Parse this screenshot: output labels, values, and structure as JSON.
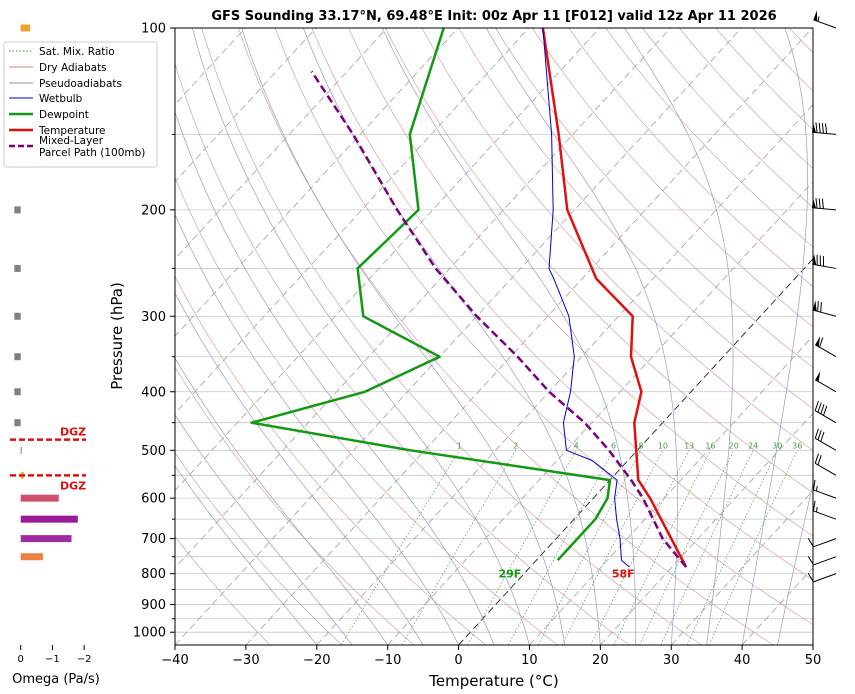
{
  "chart_data": {
    "type": "line",
    "title": "GFS Sounding 33.17°N, 69.48°E Init: 00z Apr 11 [F012] valid 12z Apr 11 2026",
    "xlabel": "Temperature (°C)",
    "ylabel": "Pressure (hPa)",
    "xlim": [
      -40,
      50
    ],
    "ylim": [
      1050,
      100
    ],
    "y_scale": "log",
    "skew": true,
    "grid": true,
    "legend_position": "top-left",
    "x_ticks": [
      "−40",
      "−30",
      "−20",
      "−10",
      "0",
      "10",
      "20",
      "30",
      "40",
      "50"
    ],
    "y_ticks": [
      "100",
      "200",
      "300",
      "400",
      "500",
      "600",
      "700",
      "800",
      "900",
      "1000"
    ],
    "legend": [
      {
        "label": "Sat. Mix. Ratio",
        "color": "#3a8a3a",
        "style": "dotted"
      },
      {
        "label": "Dry Adiabats",
        "color": "#d08080",
        "style": "solid"
      },
      {
        "label": "Pseudoadiabats",
        "color": "#8888c0",
        "style": "solid"
      },
      {
        "label": "Wetbulb",
        "color": "#0000cc",
        "style": "solid"
      },
      {
        "label": "Dewpoint",
        "color": "#119911",
        "style": "solid"
      },
      {
        "label": "Temperature",
        "color": "#e01010",
        "style": "solid"
      },
      {
        "label": "Mixed-Layer\nParcel Path (100mb)",
        "color": "#7a007a",
        "style": "dashed"
      }
    ],
    "series": [
      {
        "name": "Temperature",
        "color": "#e01010",
        "points": [
          [
            780,
            22
          ],
          [
            600,
            8
          ],
          [
            560,
            4
          ],
          [
            450,
            -4
          ],
          [
            400,
            -7
          ],
          [
            350,
            -13
          ],
          [
            300,
            -18
          ],
          [
            260,
            -28
          ],
          [
            200,
            -41
          ],
          [
            150,
            -52
          ],
          [
            100,
            -68
          ]
        ]
      },
      {
        "name": "Dewpoint",
        "color": "#119911",
        "points": [
          [
            760,
            3
          ],
          [
            700,
            3
          ],
          [
            650,
            3
          ],
          [
            600,
            2
          ],
          [
            560,
            0
          ],
          [
            500,
            -32
          ],
          [
            450,
            -58
          ],
          [
            400,
            -46
          ],
          [
            350,
            -40
          ],
          [
            300,
            -56
          ],
          [
            250,
            -63
          ],
          [
            200,
            -62
          ],
          [
            150,
            -73
          ],
          [
            100,
            -82
          ]
        ]
      },
      {
        "name": "Wetbulb",
        "color": "#0000cc",
        "points": [
          [
            780,
            14
          ],
          [
            760,
            12
          ],
          [
            700,
            9
          ],
          [
            650,
            6
          ],
          [
            600,
            3
          ],
          [
            560,
            1
          ],
          [
            520,
            -5
          ],
          [
            500,
            -10
          ],
          [
            450,
            -14
          ],
          [
            400,
            -17
          ],
          [
            350,
            -21
          ],
          [
            300,
            -27
          ],
          [
            260,
            -34
          ],
          [
            250,
            -36
          ],
          [
            200,
            -43
          ],
          [
            150,
            -53
          ],
          [
            100,
            -68
          ]
        ]
      },
      {
        "name": "Mixed-Layer\nParcel Path (100mb)",
        "color": "#7a007a",
        "points": [
          [
            780,
            22
          ],
          [
            700,
            15
          ],
          [
            600,
            7
          ],
          [
            560,
            3
          ],
          [
            500,
            -4
          ],
          [
            450,
            -11
          ],
          [
            400,
            -20
          ],
          [
            350,
            -29
          ],
          [
            300,
            -40
          ],
          [
            250,
            -52
          ],
          [
            200,
            -65
          ],
          [
            150,
            -81
          ],
          [
            118,
            -95
          ]
        ]
      }
    ],
    "surface_labels": [
      {
        "text": "29F",
        "p": 800,
        "t": -2,
        "color": "#119911"
      },
      {
        "text": "58F",
        "p": 800,
        "t": 14,
        "color": "#e01010"
      }
    ],
    "mixing_ratio_labels": [
      "1",
      "2",
      "4",
      "6",
      "8",
      "10",
      "13",
      "16",
      "20",
      "24",
      "30",
      "36"
    ],
    "omega_panel": {
      "xlabel": "Omega (Pa/s)",
      "ticks": [
        "0",
        "−1",
        "−2"
      ],
      "xlim": [
        0.4,
        -2.5
      ],
      "dgz_label": "DGZ",
      "dgz_levels": [
        480,
        550
      ],
      "bars": [
        {
          "p": 100,
          "value": -0.3,
          "color": "#f0a030"
        },
        {
          "p": 200,
          "value": 0.2,
          "color": "#808080"
        },
        {
          "p": 250,
          "value": 0.2,
          "color": "#808080"
        },
        {
          "p": 300,
          "value": 0.2,
          "color": "#808080"
        },
        {
          "p": 350,
          "value": 0.2,
          "color": "#808080"
        },
        {
          "p": 400,
          "value": 0.2,
          "color": "#808080"
        },
        {
          "p": 450,
          "value": 0.2,
          "color": "#808080"
        },
        {
          "p": 500,
          "value": -0.02,
          "color": "#808080"
        },
        {
          "p": 550,
          "value": -0.1,
          "color": "#f0b030"
        },
        {
          "p": 600,
          "value": -1.2,
          "color": "#d05070"
        },
        {
          "p": 650,
          "value": -1.8,
          "color": "#9a1a9a"
        },
        {
          "p": 700,
          "value": -1.6,
          "color": "#a02aa0"
        },
        {
          "p": 750,
          "value": -0.7,
          "color": "#f08040"
        }
      ]
    },
    "wind_barbs": [
      {
        "p": 100,
        "dir": 290,
        "spd": 55
      },
      {
        "p": 150,
        "dir": 275,
        "spd": 90
      },
      {
        "p": 200,
        "dir": 275,
        "spd": 80
      },
      {
        "p": 250,
        "dir": 280,
        "spd": 80
      },
      {
        "p": 300,
        "dir": 285,
        "spd": 70
      },
      {
        "p": 350,
        "dir": 300,
        "spd": 60
      },
      {
        "p": 400,
        "dir": 300,
        "spd": 50
      },
      {
        "p": 450,
        "dir": 300,
        "spd": 40
      },
      {
        "p": 500,
        "dir": 300,
        "spd": 30
      },
      {
        "p": 550,
        "dir": 300,
        "spd": 20
      },
      {
        "p": 600,
        "dir": 290,
        "spd": 15
      },
      {
        "p": 650,
        "dir": 290,
        "spd": 15
      },
      {
        "p": 700,
        "dir": 250,
        "spd": 10
      },
      {
        "p": 750,
        "dir": 250,
        "spd": 10
      },
      {
        "p": 800,
        "dir": 250,
        "spd": 10
      }
    ]
  }
}
